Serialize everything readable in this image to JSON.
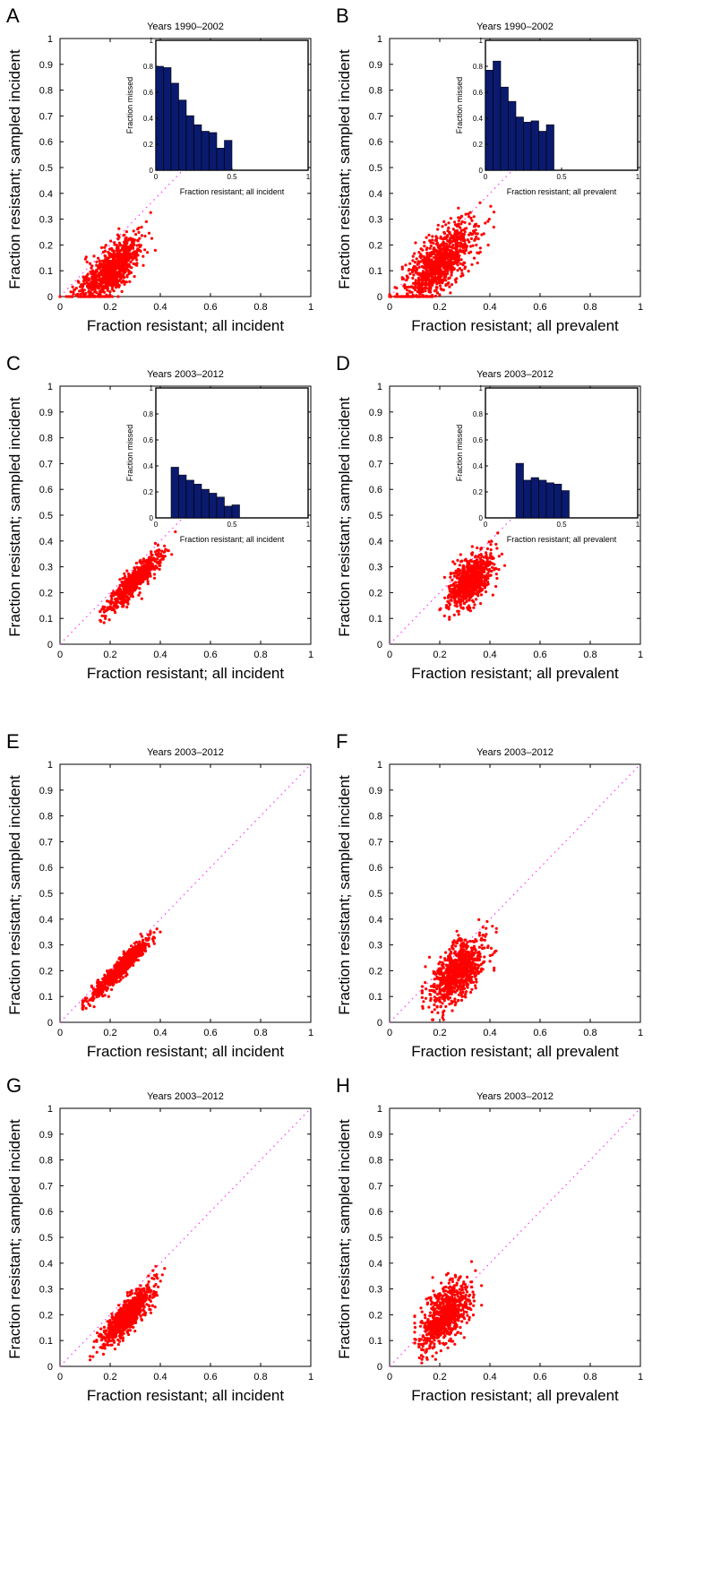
{
  "figure": {
    "panels": [
      {
        "letter": "A",
        "title": "Years 1990–2002",
        "xlabel": "Fraction resistant; all incident",
        "ylabel": "Fraction resistant; sampled incident",
        "inset": {
          "xlabel": "Fraction resistant; all incident",
          "ylabel": "Fraction missed",
          "xticks": [
            "0",
            "0.5",
            "1"
          ],
          "yticks": [
            "0",
            "0.2",
            "0.4",
            "0.6",
            "0.8",
            "1"
          ]
        }
      },
      {
        "letter": "B",
        "title": "Years 1990–2002",
        "xlabel": "Fraction resistant; all prevalent",
        "ylabel": "Fraction resistant; sampled incident",
        "inset": {
          "xlabel": "Fraction resistant; all prevalent",
          "ylabel": "Fraction missed",
          "xticks": [
            "0",
            "0.5",
            "1"
          ],
          "yticks": [
            "0",
            "0.2",
            "0.4",
            "0.6",
            "0.8",
            "1"
          ]
        }
      },
      {
        "letter": "C",
        "title": "Years 2003–2012",
        "xlabel": "Fraction resistant; all incident",
        "ylabel": "Fraction resistant; sampled incident",
        "inset": {
          "xlabel": "Fraction resistant; all incident",
          "ylabel": "Fraction missed",
          "xticks": [
            "0",
            "0.5",
            "1"
          ],
          "yticks": [
            "0",
            "0.2",
            "0.4",
            "0.6",
            "0.8",
            "1"
          ]
        }
      },
      {
        "letter": "D",
        "title": "Years 2003–2012",
        "xlabel": "Fraction resistant; all prevalent",
        "ylabel": "Fraction resistant; sampled incident",
        "inset": {
          "xlabel": "Fraction resistant; all prevalent",
          "ylabel": "Fraction missed",
          "xticks": [
            "0",
            "0.5",
            "1"
          ],
          "yticks": [
            "0",
            "0.2",
            "0.4",
            "0.6",
            "0.8",
            "1"
          ]
        }
      },
      {
        "letter": "E",
        "title": "Years 2003–2012",
        "xlabel": "Fraction resistant; all incident",
        "ylabel": "Fraction resistant; sampled incident"
      },
      {
        "letter": "F",
        "title": "Years 2003–2012",
        "xlabel": "Fraction resistant; all prevalent",
        "ylabel": "Fraction resistant; sampled incident"
      },
      {
        "letter": "G",
        "title": "Years 2003–2012",
        "xlabel": "Fraction resistant; all incident",
        "ylabel": "Fraction resistant; sampled incident"
      },
      {
        "letter": "H",
        "title": "Years 2003–2012",
        "xlabel": "Fraction resistant; all prevalent",
        "ylabel": "Fraction resistant; sampled incident"
      }
    ],
    "xticks": [
      "0",
      "0.2",
      "0.4",
      "0.6",
      "0.8",
      "1"
    ],
    "yticks": [
      "0",
      "0.1",
      "0.2",
      "0.3",
      "0.4",
      "0.5",
      "0.6",
      "0.7",
      "0.8",
      "0.9",
      "1"
    ]
  },
  "colors": {
    "points": "#ff0000",
    "diagonal": "#ff33ff",
    "bars": "#0a1a6e",
    "axis": "#000000"
  },
  "chart_data": [
    {
      "panel": "A",
      "type": "scatter",
      "title": "Years 1990–2002",
      "xlabel": "Fraction resistant; all incident",
      "ylabel": "Fraction resistant; sampled incident",
      "xlim": [
        0,
        1
      ],
      "ylim": [
        0,
        1
      ],
      "reference_line": "y = x",
      "cloud": {
        "x_center": 0.2,
        "x_spread": 0.06,
        "x_range": [
          0.0,
          0.38
        ],
        "slope": 0.75,
        "offset": -0.05,
        "noise": 0.045,
        "floor_at_zero": true,
        "n": 900
      },
      "inset": {
        "type": "bar",
        "xlabel": "Fraction resistant; all incident",
        "ylabel": "Fraction missed",
        "xlim": [
          0,
          1
        ],
        "ylim": [
          0,
          1
        ],
        "bin_width": 0.05,
        "x": [
          0.025,
          0.075,
          0.125,
          0.175,
          0.225,
          0.275,
          0.325,
          0.375,
          0.425,
          0.475
        ],
        "values": [
          0.8,
          0.79,
          0.67,
          0.54,
          0.42,
          0.35,
          0.3,
          0.29,
          0.17,
          0.23
        ]
      }
    },
    {
      "panel": "B",
      "type": "scatter",
      "title": "Years 1990–2002",
      "xlabel": "Fraction resistant; all prevalent",
      "ylabel": "Fraction resistant; sampled incident",
      "xlim": [
        0,
        1
      ],
      "ylim": [
        0,
        1
      ],
      "reference_line": "y = x",
      "cloud": {
        "x_center": 0.2,
        "x_spread": 0.07,
        "x_range": [
          0.0,
          0.42
        ],
        "slope": 0.8,
        "offset": -0.03,
        "noise": 0.055,
        "floor_at_zero": true,
        "n": 1000
      },
      "inset": {
        "type": "bar",
        "xlabel": "Fraction resistant; all prevalent",
        "ylabel": "Fraction missed",
        "xlim": [
          0,
          1
        ],
        "ylim": [
          0,
          1
        ],
        "bin_width": 0.05,
        "x": [
          0.025,
          0.075,
          0.125,
          0.175,
          0.225,
          0.275,
          0.325,
          0.375,
          0.425
        ],
        "values": [
          0.77,
          0.84,
          0.64,
          0.53,
          0.41,
          0.37,
          0.38,
          0.3,
          0.35
        ]
      }
    },
    {
      "panel": "C",
      "type": "scatter",
      "title": "Years 2003–2012",
      "xlabel": "Fraction resistant; all incident",
      "ylabel": "Fraction resistant; sampled incident",
      "xlim": [
        0,
        1
      ],
      "ylim": [
        0,
        1
      ],
      "reference_line": "y = x",
      "cloud": {
        "x_center": 0.3,
        "x_spread": 0.05,
        "x_range": [
          0.16,
          0.46
        ],
        "slope": 0.95,
        "offset": -0.04,
        "noise": 0.025,
        "floor_at_zero": false,
        "n": 700
      },
      "inset": {
        "type": "bar",
        "xlabel": "Fraction resistant; all incident",
        "ylabel": "Fraction missed",
        "xlim": [
          0,
          1
        ],
        "ylim": [
          0,
          1
        ],
        "bin_width": 0.05,
        "x": [
          0.125,
          0.175,
          0.225,
          0.275,
          0.325,
          0.375,
          0.425,
          0.475,
          0.525
        ],
        "values": [
          0.39,
          0.33,
          0.29,
          0.26,
          0.22,
          0.19,
          0.16,
          0.09,
          0.1
        ]
      }
    },
    {
      "panel": "D",
      "type": "scatter",
      "title": "Years 2003–2012",
      "xlabel": "Fraction resistant; all prevalent",
      "ylabel": "Fraction resistant; sampled incident",
      "xlim": [
        0,
        1
      ],
      "ylim": [
        0,
        1
      ],
      "reference_line": "y = x",
      "cloud": {
        "x_center": 0.32,
        "x_spread": 0.045,
        "x_range": [
          0.2,
          0.46
        ],
        "slope": 0.7,
        "offset": 0.02,
        "noise": 0.04,
        "floor_at_zero": false,
        "n": 800
      },
      "inset": {
        "type": "bar",
        "xlabel": "Fraction resistant; all prevalent",
        "ylabel": "Fraction missed",
        "xlim": [
          0,
          1
        ],
        "ylim": [
          0,
          1
        ],
        "bin_width": 0.05,
        "x": [
          0.225,
          0.275,
          0.325,
          0.375,
          0.425,
          0.475,
          0.525
        ],
        "values": [
          0.42,
          0.29,
          0.31,
          0.29,
          0.27,
          0.26,
          0.21
        ]
      }
    },
    {
      "panel": "E",
      "type": "scatter",
      "title": "Years 2003–2012",
      "xlabel": "Fraction resistant; all incident",
      "ylabel": "Fraction resistant; sampled incident",
      "xlim": [
        0,
        1
      ],
      "ylim": [
        0,
        1
      ],
      "reference_line": "y = x",
      "cloud": {
        "x_center": 0.24,
        "x_spread": 0.055,
        "x_range": [
          0.09,
          0.4
        ],
        "slope": 0.95,
        "offset": -0.02,
        "noise": 0.018,
        "floor_at_zero": false,
        "n": 800
      }
    },
    {
      "panel": "F",
      "type": "scatter",
      "title": "Years 2003–2012",
      "xlabel": "Fraction resistant; all prevalent",
      "ylabel": "Fraction resistant; sampled incident",
      "xlim": [
        0,
        1
      ],
      "ylim": [
        0,
        1
      ],
      "reference_line": "y = x",
      "cloud": {
        "x_center": 0.27,
        "x_spread": 0.055,
        "x_range": [
          0.13,
          0.48
        ],
        "slope": 0.65,
        "offset": 0.02,
        "noise": 0.055,
        "floor_at_zero": false,
        "n": 800
      }
    },
    {
      "panel": "G",
      "type": "scatter",
      "title": "Years 2003–2012",
      "xlabel": "Fraction resistant; all incident",
      "ylabel": "Fraction resistant; sampled incident",
      "xlim": [
        0,
        1
      ],
      "ylim": [
        0,
        1
      ],
      "reference_line": "y = x",
      "cloud": {
        "x_center": 0.27,
        "x_spread": 0.05,
        "x_range": [
          0.12,
          0.48
        ],
        "slope": 0.95,
        "offset": -0.06,
        "noise": 0.03,
        "floor_at_zero": false,
        "n": 800
      }
    },
    {
      "panel": "H",
      "type": "scatter",
      "title": "Years 2003–2012",
      "xlabel": "Fraction resistant; all prevalent",
      "ylabel": "Fraction resistant; sampled incident",
      "xlim": [
        0,
        1
      ],
      "ylim": [
        0,
        1
      ],
      "reference_line": "y = x",
      "cloud": {
        "x_center": 0.22,
        "x_spread": 0.05,
        "x_range": [
          0.1,
          0.42
        ],
        "slope": 0.8,
        "offset": 0.02,
        "noise": 0.05,
        "floor_at_zero": false,
        "n": 800
      }
    }
  ]
}
